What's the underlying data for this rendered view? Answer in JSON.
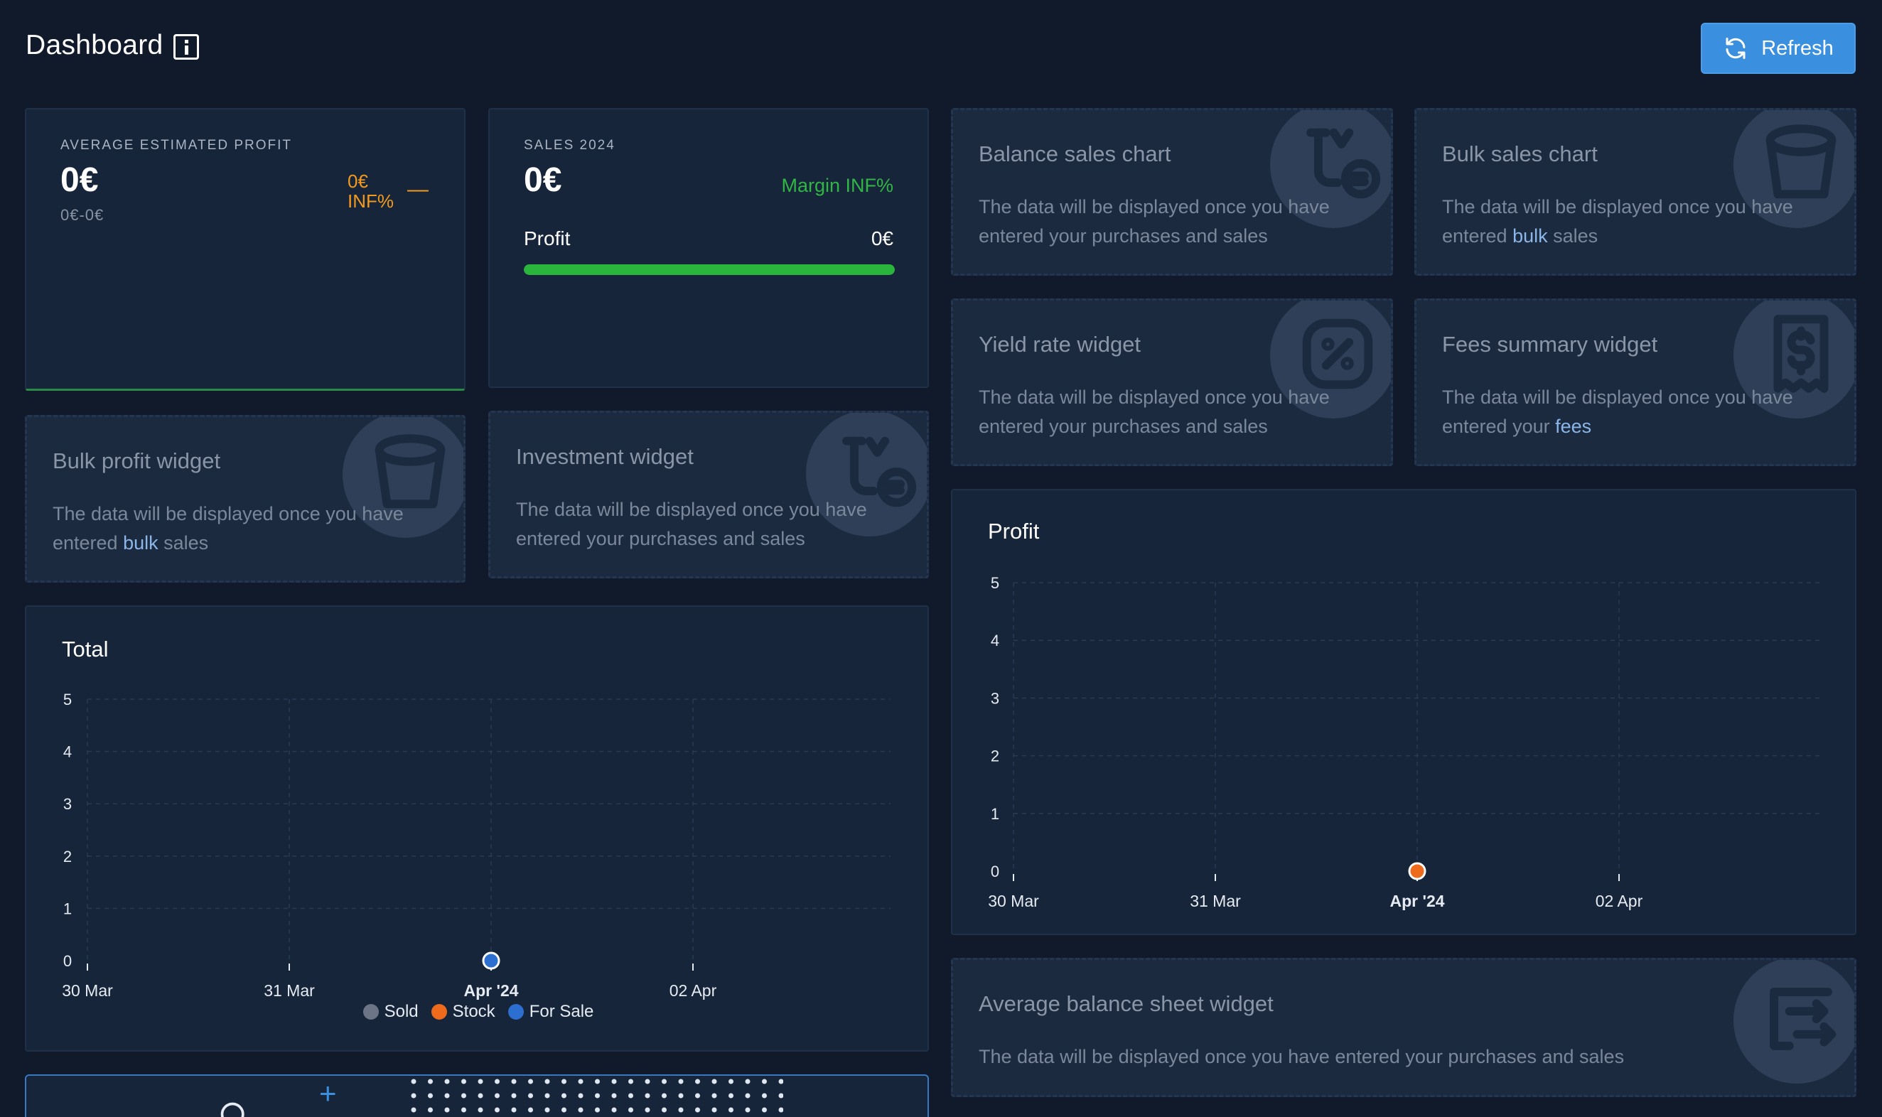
{
  "header": {
    "title": "Dashboard",
    "refresh_label": "Refresh"
  },
  "avg_profit": {
    "label": "AVERAGE ESTIMATED PROFIT",
    "value": "0€",
    "range": "0€-0€",
    "delta_value": "0€",
    "delta_percent": "INF%",
    "delta_sign": "—"
  },
  "sales": {
    "label": "SALES 2024",
    "value": "0€",
    "margin": "Margin INF%",
    "profit_label": "Profit",
    "profit_value": "0€",
    "progress": 1.0
  },
  "widgets": {
    "balance_sales": {
      "title": "Balance sales chart",
      "desc": "The data will be displayed once you have entered your purchases and sales"
    },
    "bulk_sales": {
      "title": "Bulk sales chart",
      "desc_pre": "The data will be displayed once you have entered ",
      "desc_hl": "bulk",
      "desc_post": " sales"
    },
    "yield_rate": {
      "title": "Yield rate widget",
      "desc": "The data will be displayed once you have entered your purchases and sales"
    },
    "fees_summary": {
      "title": "Fees summary widget",
      "desc_pre": "The data will be displayed once you have entered your ",
      "desc_hl": "fees"
    },
    "bulk_profit": {
      "title": "Bulk profit widget",
      "desc_pre": "The data will be displayed once you have entered ",
      "desc_hl": "bulk",
      "desc_post": " sales"
    },
    "investment": {
      "title": "Investment widget",
      "desc": "The data will be displayed once you have entered your purchases and sales"
    },
    "avg_balance": {
      "title": "Average balance sheet widget",
      "desc": "The data will be displayed once you have entered your purchases and sales"
    }
  },
  "chart_data": [
    {
      "type": "line",
      "title": "Total",
      "x": [
        "30 Mar",
        "31 Mar",
        "Apr '24",
        "02 Apr"
      ],
      "bold_tick": "Apr '24",
      "ylim": [
        0,
        5
      ],
      "yticks": [
        "0",
        "1",
        "2",
        "3",
        "4",
        "5"
      ],
      "grid": true,
      "legend_position": "bottom",
      "series": [
        {
          "name": "Sold",
          "color": "#6b7585",
          "points": [
            {
              "x": "Apr '24",
              "y": 0
            }
          ]
        },
        {
          "name": "Stock",
          "color": "#ee6a1c",
          "points": [
            {
              "x": "Apr '24",
              "y": 0
            }
          ]
        },
        {
          "name": "For Sale",
          "color": "#2d6fd0",
          "points": [
            {
              "x": "Apr '24",
              "y": 0
            }
          ]
        }
      ]
    },
    {
      "type": "line",
      "title": "Profit",
      "x": [
        "30 Mar",
        "31 Mar",
        "Apr '24",
        "02 Apr"
      ],
      "bold_tick": "Apr '24",
      "ylim": [
        0,
        5
      ],
      "yticks": [
        "0",
        "1",
        "2",
        "3",
        "4",
        "5"
      ],
      "grid": true,
      "series": [
        {
          "color": "#ee6a1c",
          "points": [
            {
              "x": "Apr '24",
              "y": 0
            }
          ]
        }
      ]
    }
  ]
}
